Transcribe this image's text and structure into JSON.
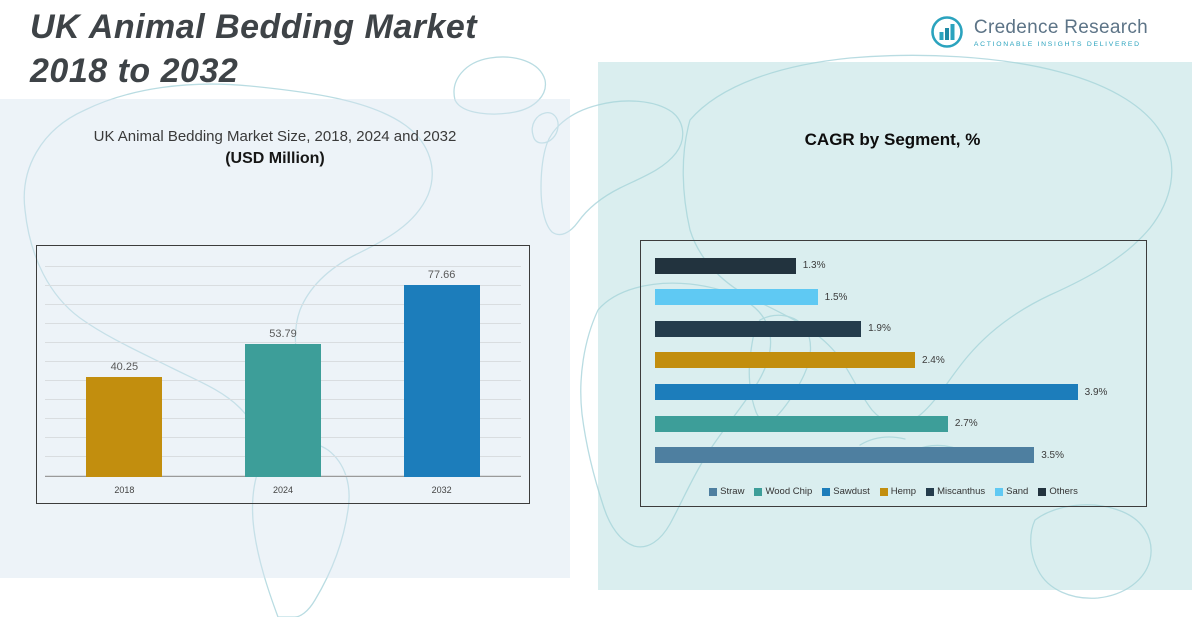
{
  "header": {
    "title_line1": "UK Animal Bedding Market",
    "title_line2": "2018 to 2032"
  },
  "logo": {
    "name": "Credence Research",
    "tagline": "Actionable Insights Delivered",
    "accent_color": "#2BA3BE",
    "text_color": "#5D7487"
  },
  "colors": {
    "gold": "#C28E0E",
    "teal": "#3D9E99",
    "blue": "#1C7DBB",
    "dark_navy": "#243C4C",
    "charcoal": "#22333E",
    "light_blue": "#5FC9F3",
    "steel_blue": "#4E7FA0",
    "map_line": "#B6DBE1"
  },
  "chart_data": [
    {
      "type": "bar",
      "title": "UK Animal Bedding Market Size, 2018, 2024 and 2032",
      "subtitle": "(USD Million)",
      "categories": [
        "2018",
        "2024",
        "2032"
      ],
      "values": [
        40.25,
        53.79,
        77.66
      ],
      "value_labels": [
        "40.25",
        "53.79",
        "77.66"
      ],
      "bar_colors": [
        "#C28E0E",
        "#3D9E99",
        "#1C7DBB"
      ],
      "xlabel": "",
      "ylabel": "",
      "ylim": [
        0,
        90
      ],
      "grid": true,
      "legend_position": "none"
    },
    {
      "type": "bar-horizontal",
      "title": "CAGR by Segment, %",
      "xlim": [
        0,
        4.4
      ],
      "grid": false,
      "legend_position": "bottom",
      "rows": [
        {
          "name": "Others",
          "value": 1.3,
          "label": "1.3%",
          "color": "#22333E"
        },
        {
          "name": "Sand",
          "value": 1.5,
          "label": "1.5%",
          "color": "#5FC9F3"
        },
        {
          "name": "Miscanthus",
          "value": 1.9,
          "label": "1.9%",
          "color": "#243C4C"
        },
        {
          "name": "Hemp",
          "value": 2.4,
          "label": "2.4%",
          "color": "#C28E0E"
        },
        {
          "name": "Sawdust",
          "value": 3.9,
          "label": "3.9%",
          "color": "#1C7DBB"
        },
        {
          "name": "Wood Chip",
          "value": 2.7,
          "label": "2.7%",
          "color": "#3D9E99"
        },
        {
          "name": "Straw",
          "value": 3.5,
          "label": "3.5%",
          "color": "#4E7FA0"
        }
      ],
      "legend": [
        {
          "label": "Straw",
          "color": "#4E7FA0"
        },
        {
          "label": "Wood Chip",
          "color": "#3D9E99"
        },
        {
          "label": "Sawdust",
          "color": "#1C7DBB"
        },
        {
          "label": "Hemp",
          "color": "#C28E0E"
        },
        {
          "label": "Miscanthus",
          "color": "#243C4C"
        },
        {
          "label": "Sand",
          "color": "#5FC9F3"
        },
        {
          "label": "Others",
          "color": "#22333E"
        }
      ]
    }
  ]
}
